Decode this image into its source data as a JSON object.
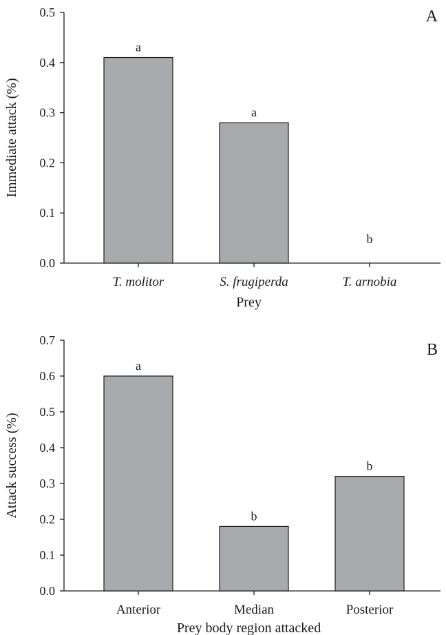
{
  "chart_data": [
    {
      "panel_label": "A",
      "type": "bar",
      "categories": [
        "T. molitor",
        "S. frugiperda",
        "T. arnobia"
      ],
      "values": [
        0.41,
        0.28,
        0.0
      ],
      "letters": [
        "a",
        "a",
        "b"
      ],
      "xlabel": "Prey",
      "ylabel": "Immediate attack (%)",
      "ylim": [
        0,
        0.5
      ],
      "yticks": [
        "0.0",
        "0.1",
        "0.2",
        "0.3",
        "0.4",
        "0.5"
      ],
      "italic_categories": true,
      "grid": false,
      "bar_color": "#a9aaae"
    },
    {
      "panel_label": "B",
      "type": "bar",
      "categories": [
        "Anterior",
        "Median",
        "Posterior"
      ],
      "values": [
        0.6,
        0.18,
        0.32
      ],
      "letters": [
        "a",
        "b",
        "b"
      ],
      "xlabel": "Prey body region attacked",
      "ylabel": "Attack success (%)",
      "ylim": [
        0,
        0.7
      ],
      "yticks": [
        "0.0",
        "0.1",
        "0.2",
        "0.3",
        "0.4",
        "0.5",
        "0.6",
        "0.7"
      ],
      "italic_categories": false,
      "grid": false,
      "bar_color": "#a9aaae"
    }
  ]
}
